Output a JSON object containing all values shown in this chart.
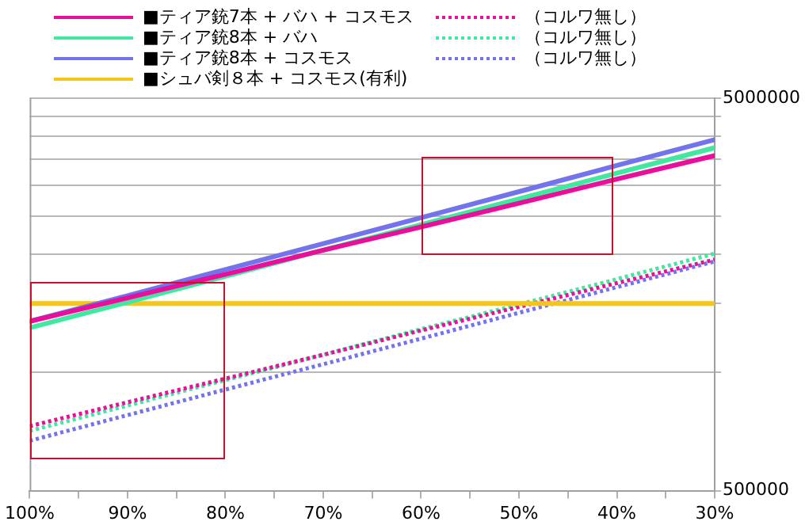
{
  "chart_data": {
    "type": "line",
    "log": "y",
    "grid": "y",
    "legend": "top",
    "marker": "none",
    "x": [
      100,
      90,
      80,
      70,
      60,
      50,
      40,
      30
    ],
    "xlim": [
      100,
      30
    ],
    "xticks": [
      {
        "value": 100,
        "label": "100%"
      },
      {
        "value": 95,
        "label": null
      },
      {
        "value": 90,
        "label": "90%"
      },
      {
        "value": 85,
        "label": null
      },
      {
        "value": 80,
        "label": "80%"
      },
      {
        "value": 75,
        "label": null
      },
      {
        "value": 70,
        "label": "70%"
      },
      {
        "value": 65,
        "label": null
      },
      {
        "value": 60,
        "label": "60%"
      },
      {
        "value": 55,
        "label": null
      },
      {
        "value": 50,
        "label": "50%"
      },
      {
        "value": 45,
        "label": null
      },
      {
        "value": 40,
        "label": "40%"
      },
      {
        "value": 35,
        "label": null
      },
      {
        "value": 30,
        "label": "30%"
      }
    ],
    "ylim": [
      500000,
      5000000
    ],
    "yticks": [
      500000,
      {
        "value": 1000000,
        "label": null
      },
      {
        "value": 1500000,
        "label": null
      },
      {
        "value": 2000000,
        "label": null
      },
      {
        "value": 2500000,
        "label": null
      },
      {
        "value": 3000000,
        "label": null
      },
      {
        "value": 3500000,
        "label": null
      },
      {
        "value": 4000000,
        "label": null
      },
      {
        "value": 4500000,
        "label": null
      },
      5000000
    ],
    "series": [
      {
        "name": "■ティア銃7本 + バハ + コスモス",
        "color": "#e8109b",
        "line_style": "solid",
        "values": [
          1350000,
          1550000,
          1780000,
          2050000,
          2350000,
          2700000,
          3110000,
          3570000
        ]
      },
      {
        "name": "■ティア銃8本 + バハ",
        "color": "#40e8a0",
        "line_style": "solid",
        "values": [
          1300000,
          1510000,
          1760000,
          2050000,
          2380000,
          2770000,
          3220000,
          3740000
        ]
      },
      {
        "name": "■ティア銃8本 + コスモス",
        "color": "#7373ee",
        "line_style": "solid",
        "values": [
          1350000,
          1570000,
          1830000,
          2130000,
          2480000,
          2890000,
          3370000,
          3920000
        ]
      },
      {
        "name": "■シュバ剣８本 + コスモス(有利)",
        "color": "#f5c518",
        "line_style": "solid",
        "values": [
          1500000,
          1500000,
          1500000,
          1500000,
          1500000,
          1500000,
          1500000,
          1500000
        ]
      },
      {
        "name": "（コルワ無し）",
        "color": "#e8109b",
        "line_style": "dotted",
        "values": [
          730000,
          840000,
          965000,
          1110000,
          1280000,
          1470000,
          1690000,
          1940000
        ]
      },
      {
        "name": "（コルワ無し）",
        "color": "#40e8a0",
        "line_style": "dotted",
        "values": [
          710000,
          824000,
          956000,
          1110000,
          1290000,
          1490000,
          1730000,
          2010000
        ]
      },
      {
        "name": "（コルワ無し）",
        "color": "#7373ee",
        "line_style": "dotted",
        "values": [
          670000,
          779000,
          905000,
          1050000,
          1220000,
          1420000,
          1650000,
          1920000
        ]
      }
    ]
  }
}
